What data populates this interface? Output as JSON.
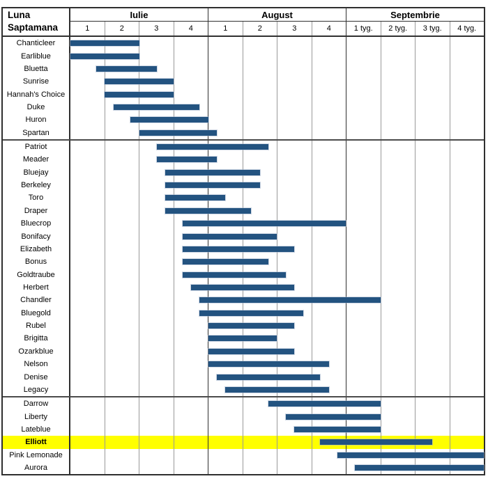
{
  "header": {
    "corner_line1": "Luna",
    "corner_line2": "Saptamana",
    "months": [
      {
        "label": "Iulie",
        "weeks": [
          "1",
          "2",
          "3",
          "4"
        ]
      },
      {
        "label": "August",
        "weeks": [
          "1",
          "2",
          "3",
          "4"
        ]
      },
      {
        "label": "Septembrie",
        "weeks": [
          "1 tyg.",
          "2 tyg.",
          "3 tyg.",
          "4 tyg."
        ]
      }
    ]
  },
  "colors": {
    "bar": "#235380",
    "highlight_row": "#ffff00",
    "grid_light": "#999999",
    "grid_dark": "#2f2f2f"
  },
  "chart_data": {
    "type": "bar",
    "subtype": "gantt-range",
    "x_unit": "week",
    "xlim": [
      0,
      12
    ],
    "x_categories": [
      "Iulie 1",
      "Iulie 2",
      "Iulie 3",
      "Iulie 4",
      "August 1",
      "August 2",
      "August 3",
      "August 4",
      "Septembrie 1 tyg.",
      "Septembrie 2 tyg.",
      "Septembrie 3 tyg.",
      "Septembrie 4 tyg."
    ],
    "rows": [
      {
        "name": "Chanticleer",
        "start": 0,
        "end": 2
      },
      {
        "name": "Earliblue",
        "start": 0,
        "end": 2
      },
      {
        "name": "Bluetta",
        "start": 0.75,
        "end": 2.5
      },
      {
        "name": "Sunrise",
        "start": 1,
        "end": 3
      },
      {
        "name": "Hannah's Choice",
        "start": 1,
        "end": 3
      },
      {
        "name": "Duke",
        "start": 1.25,
        "end": 3.75
      },
      {
        "name": "Huron",
        "start": 1.75,
        "end": 4
      },
      {
        "name": "Spartan",
        "start": 2,
        "end": 4.25,
        "group_end": true
      },
      {
        "name": "Patriot",
        "start": 2.5,
        "end": 5.75
      },
      {
        "name": "Meader",
        "start": 2.5,
        "end": 4.25
      },
      {
        "name": "Bluejay",
        "start": 2.75,
        "end": 5.5
      },
      {
        "name": "Berkeley",
        "start": 2.75,
        "end": 5.5
      },
      {
        "name": "Toro",
        "start": 2.75,
        "end": 4.5
      },
      {
        "name": "Draper",
        "start": 2.75,
        "end": 5.25
      },
      {
        "name": "Bluecrop",
        "start": 3.25,
        "end": 8
      },
      {
        "name": "Bonifacy",
        "start": 3.25,
        "end": 6
      },
      {
        "name": "Elizabeth",
        "start": 3.25,
        "end": 6.5
      },
      {
        "name": "Bonus",
        "start": 3.25,
        "end": 5.75
      },
      {
        "name": "Goldtraube",
        "start": 3.25,
        "end": 6.25
      },
      {
        "name": "Herbert",
        "start": 3.5,
        "end": 6.5
      },
      {
        "name": "Chandler",
        "start": 3.75,
        "end": 9
      },
      {
        "name": "Bluegold",
        "start": 3.75,
        "end": 6.75
      },
      {
        "name": "Rubel",
        "start": 4,
        "end": 6.5
      },
      {
        "name": "Brigitta",
        "start": 4,
        "end": 6
      },
      {
        "name": "Ozarkblue",
        "start": 4,
        "end": 6.5
      },
      {
        "name": "Nelson",
        "start": 4,
        "end": 7.5
      },
      {
        "name": "Denise",
        "start": 4.25,
        "end": 7.25
      },
      {
        "name": "Legacy",
        "start": 4.5,
        "end": 7.5,
        "group_end": true
      },
      {
        "name": "Darrow",
        "start": 5.75,
        "end": 9
      },
      {
        "name": "Liberty",
        "start": 6.25,
        "end": 9
      },
      {
        "name": "Lateblue",
        "start": 6.5,
        "end": 9
      },
      {
        "name": "Elliott",
        "start": 7.25,
        "end": 10.5,
        "highlight": true
      },
      {
        "name": "Pink Lemonade",
        "start": 7.75,
        "end": 12
      },
      {
        "name": "Aurora",
        "start": 8.25,
        "end": 12
      }
    ]
  }
}
